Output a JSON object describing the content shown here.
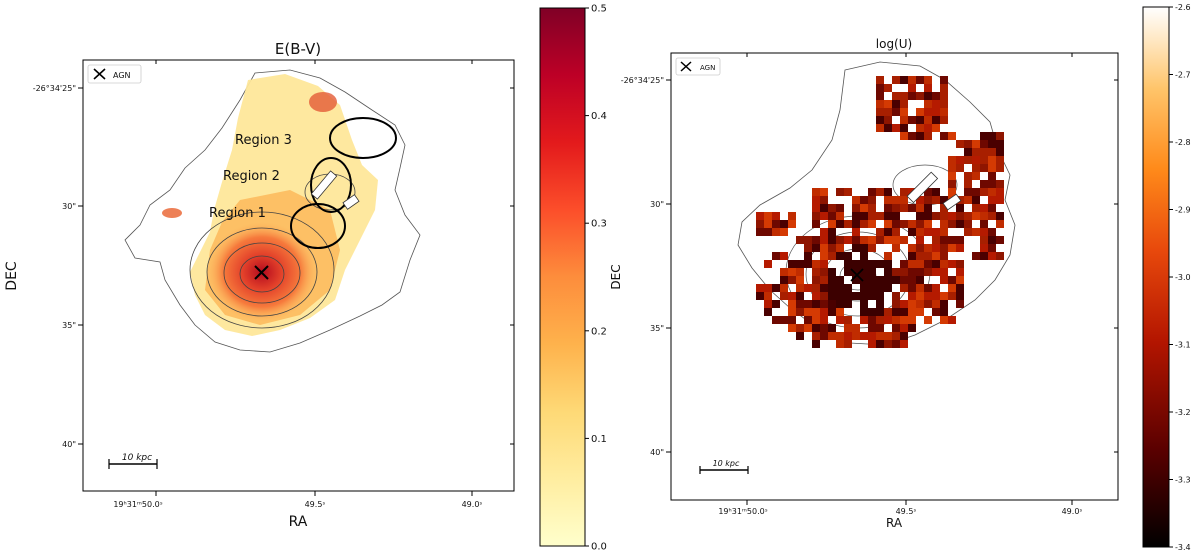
{
  "chart_data": [
    {
      "type": "heatmap",
      "title": "E(B-V)",
      "xlabel": "RA",
      "ylabel": "DEC",
      "x_ticks": [
        "19ʰ31ᵐ50.0ˢ",
        "49.5ˢ",
        "49.0ˢ"
      ],
      "y_ticks": [
        "-26°34'25\"",
        "30\"",
        "35\"",
        "40\""
      ],
      "colorbar": {
        "cmap": "YlOrRd",
        "min": 0.0,
        "max": 0.5,
        "ticks": [
          "0.0",
          "0.1",
          "0.2",
          "0.3",
          "0.4",
          "0.5"
        ],
        "colors": [
          "#ffffcc",
          "#ffeda0",
          "#fed976",
          "#feb24c",
          "#fd8d3c",
          "#fc4e2a",
          "#e31a1c",
          "#bd0026",
          "#800026"
        ]
      },
      "legend": {
        "label": "AGN",
        "marker": "x",
        "position": "top-left"
      },
      "annotations": [
        "Region 3",
        "Region 2",
        "Region 1"
      ],
      "scalebar": "10 kpc"
    },
    {
      "type": "heatmap",
      "title": "log(U)",
      "xlabel": "RA",
      "ylabel": "DEC",
      "x_ticks": [
        "19ʰ31ᵐ50.0ˢ",
        "49.5ˢ",
        "49.0ˢ"
      ],
      "y_ticks": [
        "-26°34'25\"",
        "30\"",
        "35\"",
        "40\""
      ],
      "colorbar": {
        "cmap": "gist_heat",
        "min": -3.4,
        "max": -2.6,
        "ticks": [
          "-3.4",
          "-3.3",
          "-3.2",
          "-3.1",
          "-3.0",
          "-2.9",
          "-2.8",
          "-2.7",
          "-2.6"
        ],
        "colors": [
          "#000000",
          "#5a0000",
          "#b31500",
          "#e8490c",
          "#ff8a1a",
          "#ffc56b",
          "#ffffff"
        ]
      },
      "legend": {
        "label": "AGN",
        "marker": "x",
        "position": "top-left"
      },
      "scalebar": "10 kpc"
    }
  ]
}
